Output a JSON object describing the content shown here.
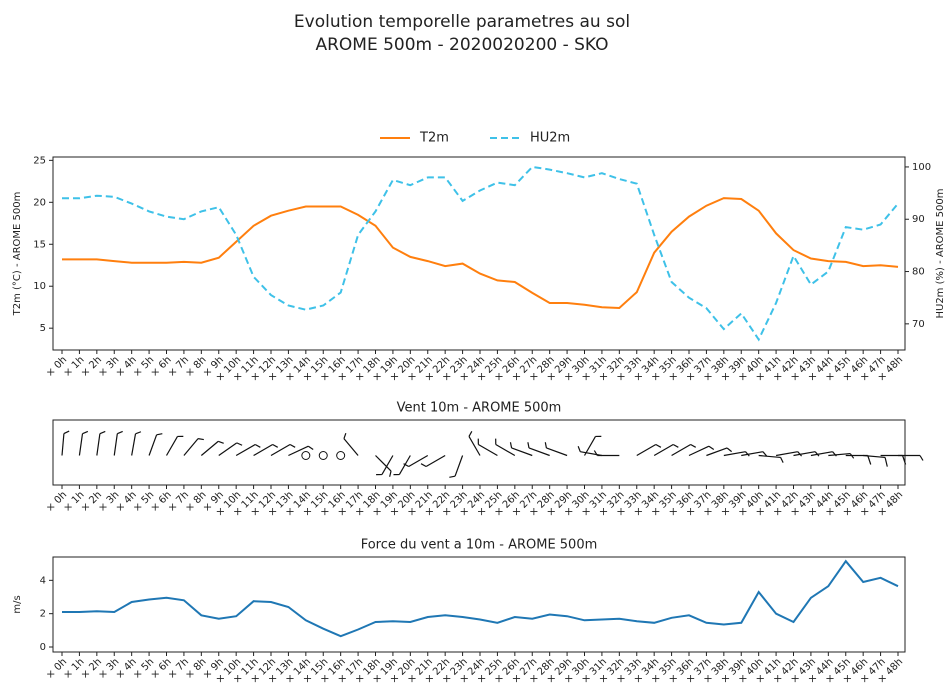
{
  "title": "Evolution temporelle parametres au sol",
  "subtitle": "AROME 500m  - 2020020200 - SKO",
  "chart_data": [
    {
      "type": "line",
      "categories": [
        "× 0h",
        "× 1h",
        "× 2h",
        "× 3h",
        "× 4h",
        "× 5h",
        "× 6h",
        "× 7h",
        "× 8h",
        "× 9h",
        "× 10h",
        "× 11h",
        "× 12h",
        "× 13h",
        "× 14h",
        "× 15h",
        "× 16h",
        "× 17h",
        "× 18h",
        "× 19h",
        "× 20h",
        "× 21h",
        "× 22h",
        "× 23h",
        "× 24h",
        "× 25h",
        "× 26h",
        "× 27h",
        "× 28h",
        "× 29h",
        "× 30h",
        "× 31h",
        "× 32h",
        "× 33h",
        "× 34h",
        "× 35h",
        "× 36h",
        "× 37h",
        "× 38h",
        "× 39h",
        "× 40h",
        "× 41h",
        "× 42h",
        "× 43h",
        "× 44h",
        "× 45h",
        "× 46h",
        "× 47h",
        "× 48h"
      ],
      "ylabel": "T2m (°C) - AROME 500m",
      "y2label": "HU2m (%) - AROME 500m",
      "ylim": [
        2.4,
        25.4
      ],
      "yticks": [
        5,
        10,
        15,
        20,
        25
      ],
      "y2lim": [
        65.0,
        101.9
      ],
      "y2ticks": [
        70,
        80,
        90,
        100
      ],
      "series": [
        {
          "name": "T2m",
          "color": "#ff7f0e",
          "dash": "solid",
          "values": [
            13.2,
            13.2,
            13.2,
            13.0,
            12.8,
            12.8,
            12.8,
            12.9,
            12.8,
            13.4,
            15.3,
            17.2,
            18.4,
            19.0,
            19.5,
            19.5,
            19.5,
            18.5,
            17.2,
            14.6,
            13.5,
            13.0,
            12.4,
            12.7,
            11.5,
            10.7,
            10.5,
            9.2,
            8.0,
            8.0,
            7.8,
            7.5,
            7.4,
            9.3,
            14.0,
            16.5,
            18.3,
            19.6,
            20.5,
            20.4,
            19.0,
            16.3,
            14.3,
            13.3,
            13.0,
            12.9,
            12.4,
            12.5,
            12.3
          ]
        },
        {
          "name": "HU2m",
          "color": "#3ec1e8",
          "dash": "dashed",
          "axis": "y2",
          "values": [
            94,
            94,
            94.5,
            94.3,
            93,
            91.5,
            90.5,
            90,
            91.5,
            92.3,
            87,
            79,
            75.5,
            73.5,
            72.7,
            73.5,
            76,
            87,
            91.5,
            97.5,
            96.5,
            98,
            98,
            93.5,
            95.5,
            97,
            96.5,
            100,
            99.5,
            98.8,
            98,
            98.8,
            97.7,
            96.8,
            87,
            78,
            75,
            73,
            69,
            72,
            67,
            74,
            83,
            77.5,
            80,
            88.5,
            88,
            89,
            93
          ]
        }
      ]
    },
    {
      "type": "barbs",
      "title": "Vent 10m - AROME 500m",
      "categories": [
        "× 0h",
        "× 1h",
        "× 2h",
        "× 3h",
        "× 4h",
        "× 5h",
        "× 6h",
        "× 7h",
        "× 8h",
        "× 9h",
        "× 10h",
        "× 11h",
        "× 12h",
        "× 13h",
        "× 14h",
        "× 15h",
        "× 16h",
        "× 17h",
        "× 18h",
        "× 19h",
        "× 20h",
        "× 21h",
        "× 22h",
        "× 23h",
        "× 24h",
        "× 25h",
        "× 26h",
        "× 27h",
        "× 28h",
        "× 29h",
        "× 30h",
        "× 31h",
        "× 32h",
        "× 33h",
        "× 34h",
        "× 35h",
        "× 36h",
        "× 37h",
        "× 38h",
        "× 39h",
        "× 40h",
        "× 41h",
        "× 42h",
        "× 43h",
        "× 44h",
        "× 45h",
        "× 46h",
        "× 47h",
        "× 48h"
      ],
      "directions": [
        5,
        8,
        8,
        8,
        10,
        20,
        30,
        40,
        50,
        55,
        60,
        60,
        60,
        65,
        0,
        0,
        0,
        320,
        135,
        210,
        210,
        240,
        240,
        200,
        330,
        300,
        300,
        290,
        290,
        290,
        30,
        280,
        270,
        60,
        60,
        60,
        65,
        70,
        80,
        80,
        95,
        80,
        80,
        80,
        85,
        90,
        95,
        90,
        90
      ],
      "speeds": [
        4,
        4,
        4,
        4,
        5,
        6,
        6,
        6,
        4,
        3,
        4,
        5,
        5,
        5,
        2,
        1,
        2,
        3,
        3,
        3,
        3,
        4,
        4,
        4,
        3,
        3,
        3,
        3,
        4,
        4,
        3,
        3,
        3,
        3,
        3,
        3,
        4,
        3,
        3,
        3,
        6,
        4,
        3,
        6,
        7,
        10,
        8,
        8,
        7
      ]
    },
    {
      "type": "line",
      "title": "Force du vent a 10m - AROME 500m",
      "categories": [
        "× 0h",
        "× 1h",
        "× 2h",
        "× 3h",
        "× 4h",
        "× 5h",
        "× 6h",
        "× 7h",
        "× 8h",
        "× 9h",
        "× 10h",
        "× 11h",
        "× 12h",
        "× 13h",
        "× 14h",
        "× 15h",
        "× 16h",
        "× 17h",
        "× 18h",
        "× 19h",
        "× 20h",
        "× 21h",
        "× 22h",
        "× 23h",
        "× 24h",
        "× 25h",
        "× 26h",
        "× 27h",
        "× 28h",
        "× 29h",
        "× 30h",
        "× 31h",
        "× 32h",
        "× 33h",
        "× 34h",
        "× 35h",
        "× 36h",
        "× 37h",
        "× 38h",
        "× 39h",
        "× 40h",
        "× 41h",
        "× 42h",
        "× 43h",
        "× 44h",
        "× 45h",
        "× 46h",
        "× 47h",
        "× 48h"
      ],
      "ylabel": "m/s",
      "ylim": [
        -0.3,
        5.4
      ],
      "yticks": [
        0,
        2,
        4
      ],
      "series": [
        {
          "name": "Force",
          "color": "#1f77b4",
          "dash": "solid",
          "values": [
            2.1,
            2.1,
            2.15,
            2.1,
            2.7,
            2.85,
            2.95,
            2.8,
            1.9,
            1.7,
            1.85,
            2.75,
            2.7,
            2.4,
            1.6,
            1.1,
            0.65,
            1.05,
            1.5,
            1.55,
            1.5,
            1.8,
            1.9,
            1.8,
            1.65,
            1.45,
            1.8,
            1.7,
            1.95,
            1.85,
            1.6,
            1.65,
            1.7,
            1.55,
            1.45,
            1.75,
            1.9,
            1.45,
            1.35,
            1.45,
            3.3,
            2.0,
            1.5,
            2.95,
            3.65,
            5.15,
            3.9,
            4.15,
            3.65
          ]
        }
      ]
    }
  ]
}
